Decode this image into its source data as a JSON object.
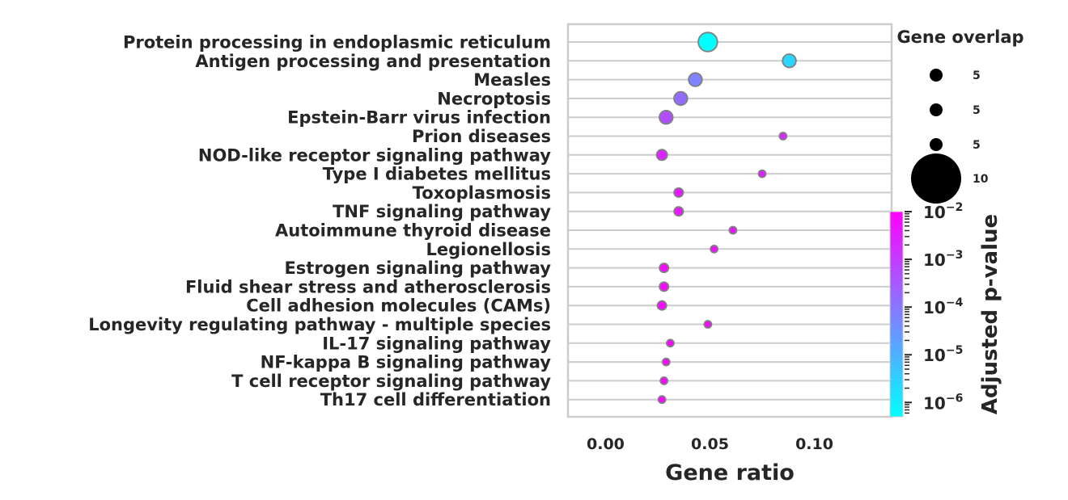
{
  "chart_data": {
    "type": "scatter",
    "xlabel": "Gene ratio",
    "xlim": [
      -0.018,
      0.137
    ],
    "xticks": [
      "0.00",
      "0.05",
      "0.10"
    ],
    "xtick_values": [
      0.0,
      0.05,
      0.1
    ],
    "grid": true,
    "size_legend": {
      "title": "Gene overlap",
      "entries": [
        "5",
        "5",
        "5",
        "10"
      ],
      "entry_sizes": [
        3,
        3,
        3,
        10
      ]
    },
    "colorbar": {
      "label": "Adjusted p-value",
      "scale": "log",
      "colormap": "cool",
      "low_color": "#00ffff",
      "high_color": "#ff00ff",
      "range_log10": [
        -6.3,
        -2.0
      ],
      "ticks_base": "10",
      "ticks_exponents": [
        "−2",
        "−3",
        "−4",
        "−5",
        "−6"
      ],
      "tick_values_log10": [
        -2,
        -3,
        -4,
        -5,
        -6
      ]
    },
    "points": [
      {
        "term": "Protein processing in endoplasmic reticulum",
        "gene_ratio": 0.049,
        "overlap": 11,
        "log10_padj": -6.3
      },
      {
        "term": "Antigen processing and presentation",
        "gene_ratio": 0.088,
        "overlap": 6,
        "log10_padj": -5.6
      },
      {
        "term": "Measles",
        "gene_ratio": 0.043,
        "overlap": 6,
        "log10_padj": -4.2
      },
      {
        "term": "Necroptosis",
        "gene_ratio": 0.036,
        "overlap": 6,
        "log10_padj": -3.8
      },
      {
        "term": "Epstein-Barr virus infection",
        "gene_ratio": 0.029,
        "overlap": 6,
        "log10_padj": -3.3
      },
      {
        "term": "Prion diseases",
        "gene_ratio": 0.085,
        "overlap": 2,
        "log10_padj": -2.7
      },
      {
        "term": "NOD-like receptor signaling pathway",
        "gene_ratio": 0.027,
        "overlap": 4,
        "log10_padj": -2.6
      },
      {
        "term": "Type I diabetes mellitus",
        "gene_ratio": 0.075,
        "overlap": 2,
        "log10_padj": -2.5
      },
      {
        "term": "Toxoplasmosis",
        "gene_ratio": 0.035,
        "overlap": 3,
        "log10_padj": -2.4
      },
      {
        "term": "TNF signaling pathway",
        "gene_ratio": 0.035,
        "overlap": 3,
        "log10_padj": -2.4
      },
      {
        "term": "Autoimmune thyroid disease",
        "gene_ratio": 0.061,
        "overlap": 2,
        "log10_padj": -2.3
      },
      {
        "term": "Legionellosis",
        "gene_ratio": 0.052,
        "overlap": 2,
        "log10_padj": -2.3
      },
      {
        "term": "Estrogen signaling pathway",
        "gene_ratio": 0.028,
        "overlap": 3,
        "log10_padj": -2.2
      },
      {
        "term": "Fluid shear stress and atherosclerosis",
        "gene_ratio": 0.028,
        "overlap": 3,
        "log10_padj": -2.2
      },
      {
        "term": "Cell adhesion molecules (CAMs)",
        "gene_ratio": 0.027,
        "overlap": 3,
        "log10_padj": -2.2
      },
      {
        "term": "Longevity regulating pathway - multiple species",
        "gene_ratio": 0.049,
        "overlap": 2,
        "log10_padj": -2.2
      },
      {
        "term": "IL-17 signaling pathway",
        "gene_ratio": 0.031,
        "overlap": 2,
        "log10_padj": -2.1
      },
      {
        "term": "NF-kappa B signaling pathway",
        "gene_ratio": 0.029,
        "overlap": 2,
        "log10_padj": -2.1
      },
      {
        "term": "T cell receptor signaling pathway",
        "gene_ratio": 0.028,
        "overlap": 2,
        "log10_padj": -2.05
      },
      {
        "term": "Th17 cell differentiation",
        "gene_ratio": 0.027,
        "overlap": 2,
        "log10_padj": -2.05
      }
    ]
  }
}
